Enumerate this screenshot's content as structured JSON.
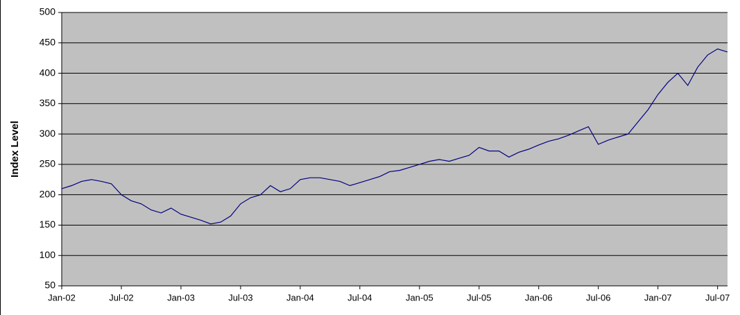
{
  "chart_data": {
    "type": "line",
    "ylabel": "Index Level",
    "x": [
      "2002-01",
      "2002-02",
      "2002-03",
      "2002-04",
      "2002-05",
      "2002-06",
      "2002-07",
      "2002-08",
      "2002-09",
      "2002-10",
      "2002-11",
      "2002-12",
      "2003-01",
      "2003-02",
      "2003-03",
      "2003-04",
      "2003-05",
      "2003-06",
      "2003-07",
      "2003-08",
      "2003-09",
      "2003-10",
      "2003-11",
      "2003-12",
      "2004-01",
      "2004-02",
      "2004-03",
      "2004-04",
      "2004-05",
      "2004-06",
      "2004-07",
      "2004-08",
      "2004-09",
      "2004-10",
      "2004-11",
      "2004-12",
      "2005-01",
      "2005-02",
      "2005-03",
      "2005-04",
      "2005-05",
      "2005-06",
      "2005-07",
      "2005-08",
      "2005-09",
      "2005-10",
      "2005-11",
      "2005-12",
      "2006-01",
      "2006-02",
      "2006-03",
      "2006-04",
      "2006-05",
      "2006-06",
      "2006-07",
      "2006-08",
      "2006-09",
      "2006-10",
      "2006-11",
      "2006-12",
      "2007-01",
      "2007-02",
      "2007-03",
      "2007-04",
      "2007-05",
      "2007-06",
      "2007-07",
      "2007-08"
    ],
    "series": [
      {
        "color": "#000080",
        "values": [
          210,
          215,
          222,
          225,
          222,
          218,
          200,
          190,
          185,
          175,
          170,
          178,
          168,
          163,
          158,
          152,
          155,
          165,
          185,
          195,
          200,
          215,
          205,
          210,
          225,
          228,
          228,
          225,
          222,
          215,
          220,
          225,
          230,
          238,
          240,
          245,
          250,
          255,
          258,
          255,
          260,
          265,
          278,
          272,
          272,
          262,
          270,
          275,
          282,
          288,
          292,
          298,
          305,
          312,
          283,
          290,
          295,
          300,
          320,
          340,
          365,
          385,
          400,
          380,
          410,
          430,
          440,
          435
        ]
      }
    ],
    "xlim": [
      "2002-01",
      "2007-08"
    ],
    "xticks": [
      {
        "value": "2002-01",
        "label": "Jan-02"
      },
      {
        "value": "2002-07",
        "label": "Jul-02"
      },
      {
        "value": "2003-01",
        "label": "Jan-03"
      },
      {
        "value": "2003-07",
        "label": "Jul-03"
      },
      {
        "value": "2004-01",
        "label": "Jan-04"
      },
      {
        "value": "2004-07",
        "label": "Jul-04"
      },
      {
        "value": "2005-01",
        "label": "Jan-05"
      },
      {
        "value": "2005-07",
        "label": "Jul-05"
      },
      {
        "value": "2006-01",
        "label": "Jan-06"
      },
      {
        "value": "2006-07",
        "label": "Jul-06"
      },
      {
        "value": "2007-01",
        "label": "Jan-07"
      },
      {
        "value": "2007-07",
        "label": "Jul-07"
      }
    ],
    "ylim": [
      50,
      500
    ],
    "yticks": [
      50,
      100,
      150,
      200,
      250,
      300,
      350,
      400,
      450,
      500
    ],
    "grid": true,
    "plot_background": "#c0c0c0"
  }
}
